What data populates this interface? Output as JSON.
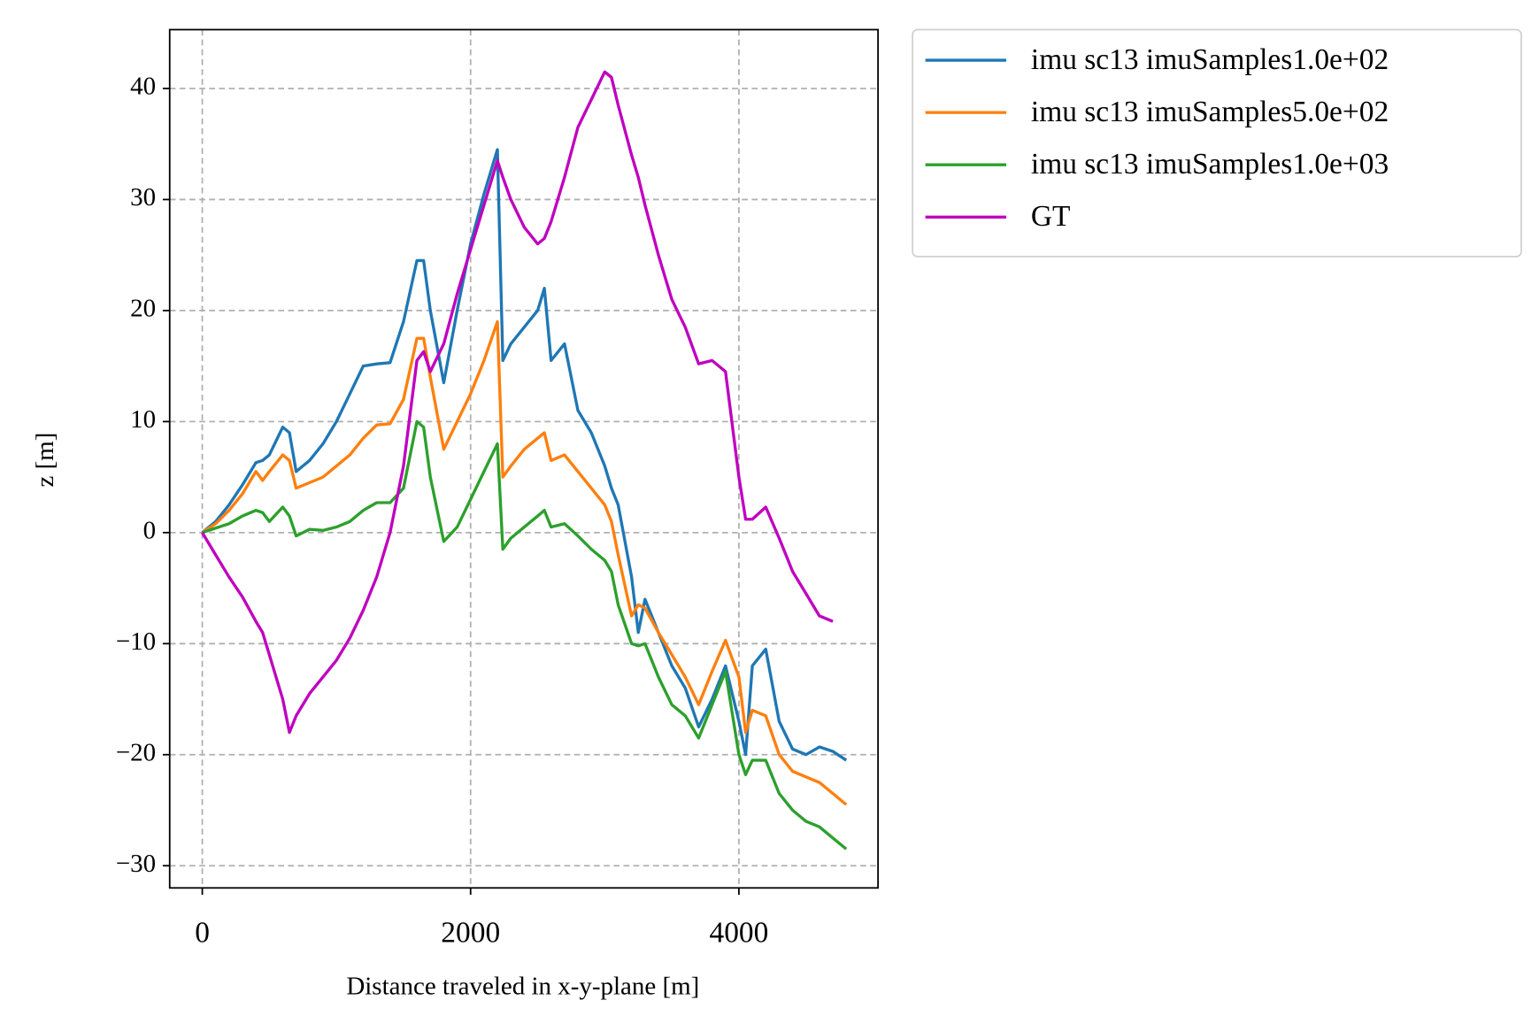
{
  "chart_data": {
    "type": "line",
    "x_label": "Distance traveled in x-y-plane [m]",
    "y_label": "z [m]",
    "x": [
      0,
      100,
      200,
      300,
      400,
      450,
      500,
      600,
      650,
      700,
      800,
      900,
      1000,
      1100,
      1200,
      1300,
      1400,
      1500,
      1600,
      1650,
      1700,
      1800,
      1900,
      2000,
      2100,
      2200,
      2240,
      2300,
      2400,
      2500,
      2550,
      2600,
      2700,
      2800,
      2900,
      3000,
      3050,
      3100,
      3200,
      3250,
      3300,
      3400,
      3500,
      3600,
      3700,
      3800,
      3900,
      4000,
      4050,
      4100,
      4200,
      4300,
      4400,
      4500,
      4600,
      4700,
      4800
    ],
    "series": [
      {
        "name": "imu sc13 imuSamples1.0e+02",
        "color": "#1f77b4",
        "values": [
          0,
          1,
          2.5,
          4.3,
          6.3,
          6.5,
          7,
          9.5,
          9,
          5.5,
          6.5,
          8,
          10,
          12.5,
          15,
          15.2,
          15.3,
          19,
          24.5,
          24.5,
          20,
          13.5,
          20,
          26,
          30.5,
          34.5,
          15.5,
          17,
          18.5,
          20,
          22,
          15.5,
          17,
          11,
          9,
          6,
          4,
          2.5,
          -4,
          -9,
          -6,
          -9,
          -12,
          -14,
          -17.5,
          -15,
          -12,
          -17,
          -20,
          -12,
          -10.5,
          -17,
          -19.5,
          -20,
          -19.3,
          -19.7,
          -20.5
        ]
      },
      {
        "name": "imu sc13 imuSamples5.0e+02",
        "color": "#ff7f0e",
        "values": [
          0,
          0.8,
          2,
          3.5,
          5.5,
          4.7,
          5.5,
          7,
          6.5,
          4,
          4.5,
          5,
          6,
          7,
          8.5,
          9.7,
          9.8,
          12,
          17.5,
          17.5,
          14,
          7.5,
          10,
          12.5,
          15.5,
          19,
          5,
          6,
          7.5,
          8.5,
          9,
          6.5,
          7,
          5.5,
          4,
          2.5,
          1,
          -2,
          -7.5,
          -6.5,
          -6.8,
          -9,
          -11,
          -13,
          -15.5,
          -12.5,
          -9.7,
          -13,
          -18,
          -16,
          -16.5,
          -20,
          -21.5,
          -22,
          -22.5,
          -23.5,
          -24.5
        ]
      },
      {
        "name": "imu sc13 imuSamples1.0e+03",
        "color": "#2ca02c",
        "values": [
          0,
          0.4,
          0.8,
          1.5,
          2,
          1.8,
          1,
          2.3,
          1.5,
          -0.3,
          0.3,
          0.2,
          0.5,
          1,
          2,
          2.7,
          2.7,
          4,
          10,
          9.5,
          5,
          -0.8,
          0.5,
          3,
          5.5,
          8,
          -1.5,
          -0.5,
          0.5,
          1.5,
          2,
          0.5,
          0.8,
          -0.3,
          -1.5,
          -2.5,
          -3.5,
          -6.5,
          -10,
          -10.2,
          -10,
          -13,
          -15.5,
          -16.5,
          -18.5,
          -15.5,
          -12.5,
          -20,
          -21.8,
          -20.5,
          -20.5,
          -23.5,
          -25,
          -26,
          -26.5,
          -27.5,
          -28.5
        ]
      },
      {
        "name": "GT",
        "color": "#bf00bf",
        "values": [
          0,
          -2,
          -4,
          -5.8,
          -8,
          -9,
          -11,
          -15,
          -18,
          -16.5,
          -14.5,
          -13,
          -11.5,
          -9.5,
          -7,
          -4,
          0,
          6,
          15.5,
          16.3,
          14.5,
          17,
          21.5,
          25.5,
          29.5,
          33.5,
          32,
          30,
          27.5,
          26,
          26.5,
          28,
          32,
          36.5,
          39,
          41.5,
          41,
          38.5,
          34,
          32,
          29.5,
          25,
          21,
          18.5,
          15.2,
          15.5,
          14.5,
          5,
          1.2,
          1.2,
          2.3,
          -0.5,
          -3.5,
          -5.5,
          -7.5,
          -8,
          null
        ]
      }
    ],
    "xlim": [
      -243,
      5037
    ],
    "ylim": [
      -32,
      45.3
    ],
    "xticks": [
      0,
      2000,
      4000
    ],
    "yticks": [
      {
        "value": -30,
        "label": "−30"
      },
      {
        "value": -20,
        "label": "−20"
      },
      {
        "value": -10,
        "label": "−10"
      },
      0,
      10,
      20,
      30,
      40
    ],
    "grid": true,
    "legend": "outside upper right"
  }
}
